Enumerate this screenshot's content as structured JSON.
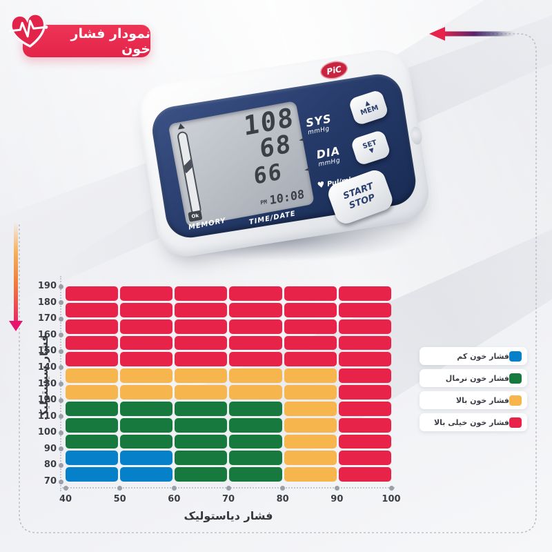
{
  "header": {
    "badge_label": "نمودار فشار خون"
  },
  "device": {
    "brand": "PiC",
    "display": {
      "sys_value": "108",
      "dia_value": "68",
      "pulse_value": "66",
      "meridiem": "PM",
      "time": "10:08",
      "ok_label": "Ok",
      "sys_label": "SYS",
      "sys_unit": "mmHg",
      "dia_label": "DIA",
      "dia_unit": "mmHg",
      "pulse_label": "Pul/min",
      "heart_glyph": "♥"
    },
    "panel_labels": {
      "memory": "MEMORY",
      "time_date": "TIME/DATE"
    },
    "buttons": {
      "mem": "MEM",
      "mem_glyph": "▲",
      "set": "SET",
      "set_glyph": "▼",
      "start": "START",
      "stop": "STOP"
    }
  },
  "chart_data": {
    "type": "heatmap",
    "title": "نمودار فشار خون",
    "xlabel": "فشار دیاستولیک",
    "ylabel": "فشار سیستولیک",
    "x_ticks": [
      40,
      50,
      60,
      70,
      80,
      90,
      100
    ],
    "y_ticks": [
      190,
      180,
      170,
      160,
      150,
      140,
      130,
      120,
      110,
      100,
      90,
      80,
      70
    ],
    "x_range": [
      40,
      100
    ],
    "y_range": [
      70,
      190
    ],
    "grid_on": false,
    "cell_colors": {
      "B": "#0680c8",
      "G": "#17793d",
      "Y": "#f7b54e",
      "R": "#e8234a"
    },
    "grid_rows_top_to_bottom": [
      "RRRRRR",
      "RRRRRR",
      "RRRRRR",
      "RRRRRR",
      "RRRRRR",
      "YYYYYR",
      "YYYYYR",
      "GGGGYR",
      "GGGGYR",
      "GGGGYR",
      "BBGGYR",
      "BBGGYR"
    ],
    "legend_position": "right",
    "legend": [
      {
        "label": "فشار خون کم",
        "color": "#0680c8"
      },
      {
        "label": "فشار خون نرمال",
        "color": "#17793d"
      },
      {
        "label": "فشار خون بالا",
        "color": "#f7b54e"
      },
      {
        "label": "فشار خون خیلی بالا",
        "color": "#e8234a"
      }
    ]
  },
  "colors": {
    "badge_red": "#e8234a",
    "arrow_orange": "#ef7e3c",
    "arrow_pink": "#e5156d",
    "device_navy": "#263b6a"
  }
}
